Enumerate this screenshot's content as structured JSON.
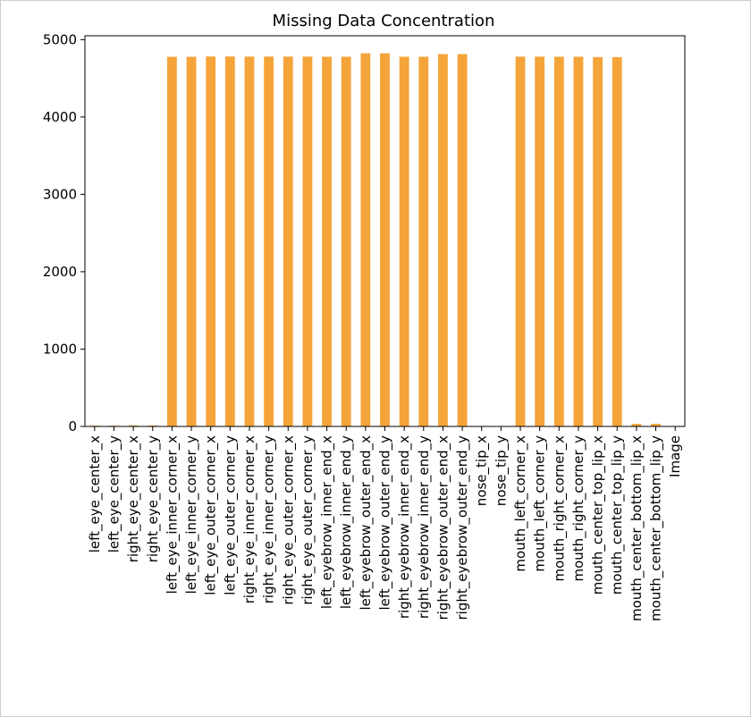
{
  "chart_data": {
    "type": "bar",
    "title": "Missing Data Concentration",
    "xlabel": "",
    "ylabel": "",
    "ylim": [
      0,
      5050
    ],
    "yticks": [
      0,
      1000,
      2000,
      3000,
      4000,
      5000
    ],
    "bar_color": "#f5a43a",
    "grid": false,
    "categories": [
      "left_eye_center_x",
      "left_eye_center_y",
      "right_eye_center_x",
      "right_eye_center_y",
      "left_eye_inner_corner_x",
      "left_eye_inner_corner_y",
      "left_eye_outer_corner_x",
      "left_eye_outer_corner_y",
      "right_eye_inner_corner_x",
      "right_eye_inner_corner_y",
      "right_eye_outer_corner_x",
      "right_eye_outer_corner_y",
      "left_eyebrow_inner_end_x",
      "left_eyebrow_inner_end_y",
      "left_eyebrow_outer_end_x",
      "left_eyebrow_outer_end_y",
      "right_eyebrow_inner_end_x",
      "right_eyebrow_inner_end_y",
      "right_eyebrow_outer_end_x",
      "right_eyebrow_outer_end_y",
      "nose_tip_x",
      "nose_tip_y",
      "mouth_left_corner_x",
      "mouth_left_corner_y",
      "mouth_right_corner_x",
      "mouth_right_corner_y",
      "mouth_center_top_lip_x",
      "mouth_center_top_lip_y",
      "mouth_center_bottom_lip_x",
      "mouth_center_bottom_lip_y",
      "Image"
    ],
    "values": [
      10,
      10,
      13,
      13,
      4778,
      4778,
      4782,
      4782,
      4781,
      4781,
      4781,
      4781,
      4779,
      4779,
      4824,
      4824,
      4779,
      4779,
      4813,
      4813,
      0,
      0,
      4780,
      4780,
      4779,
      4779,
      4774,
      4774,
      33,
      33,
      0
    ]
  }
}
